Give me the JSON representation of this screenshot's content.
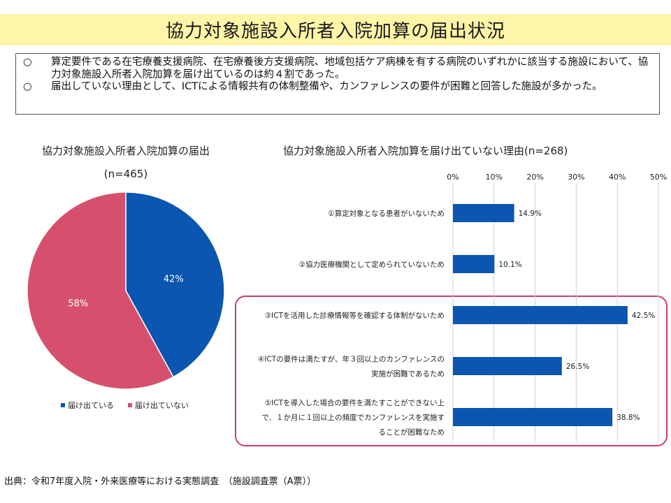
{
  "title": "協力対象施設入所者入院加算の届出状況",
  "summary": [
    {
      "bullet": "○",
      "text": "算定要件である在宅療養支援病院、在宅療養後方支援病院、地域包括ケア病棟を有する病院のいずれかに該当する施設において、協力対象施設入所者入院加算を届け出ているのは約４割であった。"
    },
    {
      "bullet": "○",
      "text": "届出していない理由として、ICTによる情報共有の体制整備や、カンファレンスの要件が困難と回答した施設が多かった。"
    }
  ],
  "pie": {
    "title": "協力対象施設入所者入院加算の届出",
    "n_label": "(n=465)"
  },
  "bar": {
    "title": "協力対象施設入所者入院加算を届け出ていない理由(n=268)"
  },
  "source": "出典：令和7年度入院・外来医療等における実態調査　（施設調査票（A票））",
  "colors": {
    "blue": "#0a56b0",
    "pink": "#d6506e",
    "highlight_border": "#c8406a",
    "banner": "#fff5a8",
    "grid": "#d0d0d0"
  },
  "chart_data": [
    {
      "type": "pie",
      "title": "協力対象施設入所者入院加算の届出",
      "subtitle": "(n=465)",
      "slices": [
        {
          "label": "届け出ている",
          "value": 42,
          "value_label": "42%",
          "color": "#0a56b0"
        },
        {
          "label": "届け出ていない",
          "value": 58,
          "value_label": "58%",
          "color": "#d6506e"
        }
      ],
      "legend_position": "bottom"
    },
    {
      "type": "bar",
      "orientation": "horizontal",
      "title": "協力対象施設入所者入院加算を届け出ていない理由(n=268)",
      "xlim": [
        0,
        50
      ],
      "xticks": [
        "0%",
        "10%",
        "20%",
        "30%",
        "40%",
        "50%"
      ],
      "grid": true,
      "categories": [
        [
          "①算定対象となる患者がいないため"
        ],
        [
          "②協力医療機関として定められていないため"
        ],
        [
          "③ICTを活用した診療情報等を確認する体制がないため"
        ],
        [
          "④ICTの要件は満たすが、年３回以上のカンファレンスの",
          "実施が困難であるため"
        ],
        [
          "⑤ICTを導入した場合の要件を満たすことができない上",
          "で、１か月に１回以上の頻度でカンファレンスを実施す",
          "ることが困難なため"
        ]
      ],
      "values": [
        14.9,
        10.1,
        42.5,
        26.5,
        38.8
      ],
      "value_labels": [
        "14.9%",
        "10.1%",
        "42.5%",
        "26.5%",
        "38.8%"
      ],
      "highlighted": [
        2,
        3,
        4
      ],
      "color": "#0a56b0"
    }
  ]
}
